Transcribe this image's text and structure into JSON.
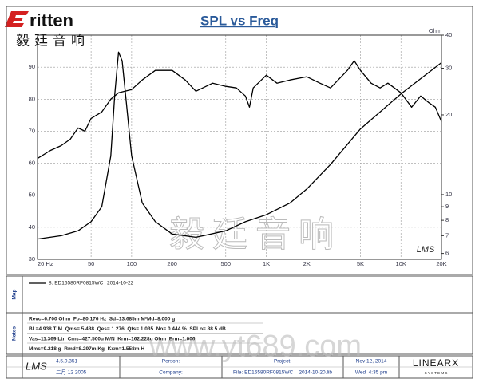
{
  "header": {
    "logo": "ritten",
    "logo_chinese": "毅廷音响"
  },
  "chart_data": {
    "type": "line",
    "title": "SPL vs Freq",
    "y2label": "Ohm",
    "xscale": "log",
    "y2scale": "log",
    "grid": true,
    "lms_mark": "LMS",
    "xlim": [
      20,
      20000
    ],
    "xticks": [
      {
        "value": 20,
        "label": "20 Hz"
      },
      50,
      100,
      200,
      500,
      {
        "value": 1000,
        "label": "1K"
      },
      {
        "value": 2000,
        "label": "2K"
      },
      {
        "value": 5000,
        "label": "5K"
      },
      {
        "value": 10000,
        "label": "10K"
      },
      {
        "value": 20000,
        "label": "20K"
      }
    ],
    "ylim": [
      30,
      100
    ],
    "yticks": [
      30,
      40,
      50,
      60,
      70,
      80,
      90
    ],
    "y2lim": [
      5.7,
      40
    ],
    "y2ticks": [
      6,
      7,
      8,
      9,
      10,
      20,
      30,
      40
    ],
    "series": [
      {
        "color": "#000000",
        "axis": "y",
        "x": [
          20,
          25,
          30,
          35,
          40,
          45,
          50,
          60,
          70,
          80,
          100,
          120,
          150,
          200,
          250,
          300,
          400,
          500,
          600,
          700,
          750,
          800,
          1000,
          1200,
          1500,
          2000,
          2500,
          3000,
          4000,
          4500,
          5000,
          6000,
          7000,
          8000,
          10000,
          12000,
          14000,
          16000,
          18000,
          20000
        ],
        "values": [
          61.5,
          64,
          65.5,
          67.5,
          71,
          70,
          74,
          76,
          80,
          82,
          83,
          86,
          89,
          89,
          86,
          82.5,
          85,
          84,
          83.5,
          81,
          77.5,
          83.5,
          87.5,
          85,
          86,
          87,
          85,
          83.5,
          89,
          92,
          89,
          85,
          83.5,
          85,
          82,
          77.5,
          81,
          79,
          77.5,
          73
        ]
      },
      {
        "color": "#000000",
        "axis": "y2",
        "x": [
          20,
          30,
          40,
          50,
          60,
          70,
          75,
          80,
          85,
          90,
          100,
          120,
          150,
          200,
          300,
          500,
          700,
          1000,
          1500,
          2000,
          3000,
          5000,
          10000,
          20000
        ],
        "values": [
          6.8,
          7.0,
          7.3,
          7.9,
          9.0,
          14,
          24,
          34.5,
          32,
          24,
          14,
          9.3,
          7.9,
          7.1,
          6.9,
          7.3,
          7.9,
          8.4,
          9.3,
          10.5,
          13,
          17.7,
          24,
          31.5
        ]
      }
    ]
  },
  "map": {
    "label": "Map",
    "entry": "8: ED16580RF0815WC",
    "date": "2014-10-22"
  },
  "notes": {
    "label": "Notes",
    "lines": [
      "Revc=6.700 Ohm  Fo=80.176 Hz  Sd=13.685m M²Md=8.000 g",
      "BL=4.938 T·M  Qms= 5.488  Qes= 1.276  Qts= 1.035  No= 0.444 %  SPLo= 88.5 dB",
      "Vas=11.369 Ltr  Cms=427.500u M/N  Krm=162.228u Ohm  Erm=1.006",
      "Mms=9.218 g  Rmd=8.297m Kg  Kxm=1.558m H"
    ]
  },
  "footer": {
    "logo": "LMS",
    "version": "4.5.0.351",
    "build_date": "二月 12 2005",
    "person": "Person:",
    "company": "Company:",
    "project": "Project:",
    "file": "File: ED16580RF0815WC    2014-10-20.lib",
    "date": "Nov 12, 2014",
    "time": "Wed  4:35 pm",
    "brand": "LINEARX",
    "brand_sub": "S Y S T E M S"
  },
  "watermark": {
    "chinese": "毅廷音响",
    "url": "www.yt689.com"
  }
}
